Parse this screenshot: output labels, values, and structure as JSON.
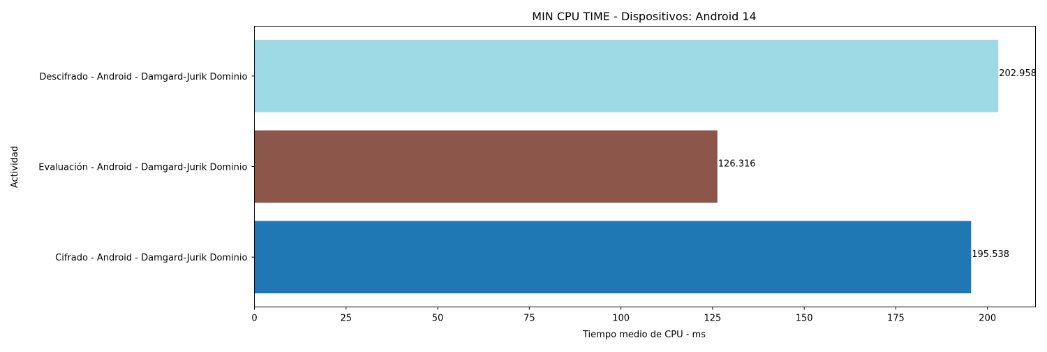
{
  "chart_data": {
    "type": "bar",
    "orientation": "horizontal",
    "title": "MIN CPU TIME - Dispositivos: Android 14",
    "xlabel": "Tiempo medio de CPU - ms",
    "ylabel": "Actividad",
    "categories": [
      "Cifrado - Android - Damgard-Jurik Dominio",
      "Evaluación - Android - Damgard-Jurik Dominio",
      "Descifrado - Android - Damgard-Jurik Dominio"
    ],
    "values": [
      195.538,
      126.316,
      202.958
    ],
    "value_labels": [
      "195.538",
      "126.316",
      "202.958"
    ],
    "colors": [
      "#1f77b4",
      "#8c564b",
      "#9edae5"
    ],
    "xlim": [
      0,
      213.1
    ],
    "xticks": [
      0,
      25,
      50,
      75,
      100,
      125,
      150,
      175,
      200
    ],
    "xtick_labels": [
      "0",
      "25",
      "50",
      "75",
      "100",
      "125",
      "150",
      "175",
      "200"
    ],
    "grid": false,
    "legend": "none"
  }
}
